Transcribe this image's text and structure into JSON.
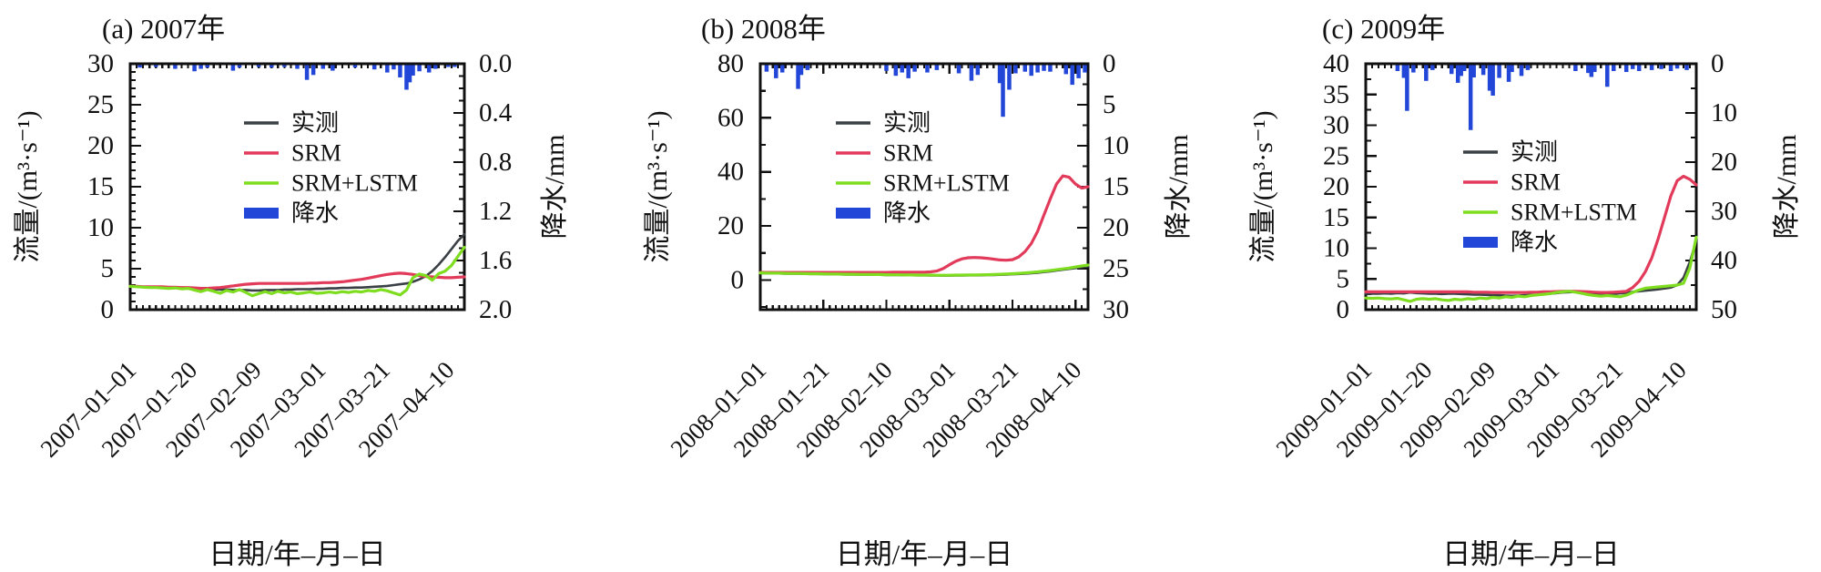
{
  "figure": {
    "background": "#ffffff",
    "xlabel": "日期/年–月–日",
    "ylabel_left": "流量/(m³·s⁻¹)",
    "ylabel_right": "降水/mm",
    "colors": {
      "observed": "#3a4045",
      "srm": "#e23a5a",
      "srm_lstm": "#7fdd20",
      "precip": "#2247d8",
      "axis": "#111111"
    },
    "legend": [
      {
        "key": "observed",
        "label": "实测",
        "type": "line"
      },
      {
        "key": "srm",
        "label": "SRM",
        "type": "line"
      },
      {
        "key": "srm_lstm",
        "label": "SRM+LSTM",
        "type": "line"
      },
      {
        "key": "precip",
        "label": "降水",
        "type": "bar"
      }
    ]
  },
  "chart_data": [
    {
      "id": "a",
      "type": "line+bar",
      "title": "(a) 2007年",
      "x_unit": "days from first tick",
      "x_range": [
        0,
        104
      ],
      "x_step_days": 2,
      "x_ticks": [
        {
          "day": 0,
          "label": "2007–01–01"
        },
        {
          "day": 19,
          "label": "2007–01–20"
        },
        {
          "day": 39,
          "label": "2007–02–09"
        },
        {
          "day": 59,
          "label": "2007–03–01"
        },
        {
          "day": 79,
          "label": "2007–03–21"
        },
        {
          "day": 99,
          "label": "2007–04–10"
        }
      ],
      "flow_axis": {
        "min": 0,
        "max": 30,
        "major": 5,
        "minor": 1
      },
      "precip_axis": {
        "min": 0,
        "max": 2.0,
        "major": 0.4,
        "minor": 0.1,
        "inverted_from_top": true,
        "labels": [
          "0.0",
          "0.4",
          "0.8",
          "1.2",
          "1.6",
          "2.0"
        ]
      },
      "series": {
        "observed": [
          2.9,
          2.85,
          2.8,
          2.8,
          2.75,
          2.75,
          2.7,
          2.7,
          2.65,
          2.6,
          2.6,
          2.55,
          2.5,
          2.5,
          2.45,
          2.45,
          2.4,
          2.4,
          2.4,
          2.35,
          2.35,
          2.4,
          2.4,
          2.4,
          2.45,
          2.45,
          2.5,
          2.5,
          2.5,
          2.55,
          2.55,
          2.6,
          2.6,
          2.65,
          2.65,
          2.7,
          2.7,
          2.75,
          2.8,
          2.85,
          2.9,
          3.0,
          3.1,
          3.2,
          3.4,
          3.7,
          4.1,
          4.7,
          5.5,
          6.4,
          7.4,
          8.4,
          9.2
        ],
        "srm": [
          2.85,
          2.85,
          2.8,
          2.8,
          2.8,
          2.8,
          2.75,
          2.75,
          2.7,
          2.7,
          2.65,
          2.6,
          2.6,
          2.65,
          2.7,
          2.8,
          2.9,
          3.0,
          3.1,
          3.15,
          3.2,
          3.2,
          3.2,
          3.2,
          3.2,
          3.2,
          3.2,
          3.2,
          3.25,
          3.25,
          3.3,
          3.3,
          3.35,
          3.4,
          3.5,
          3.6,
          3.7,
          3.85,
          4.0,
          4.15,
          4.3,
          4.4,
          4.45,
          4.4,
          4.3,
          4.15,
          4.05,
          4.0,
          3.95,
          3.9,
          3.9,
          3.95,
          4.0
        ],
        "srm_lstm": [
          2.85,
          2.8,
          2.75,
          2.7,
          2.7,
          2.65,
          2.6,
          2.65,
          2.55,
          2.6,
          2.4,
          2.2,
          2.45,
          2.25,
          2.0,
          2.35,
          2.15,
          2.45,
          2.1,
          1.7,
          1.95,
          2.2,
          1.95,
          2.25,
          2.05,
          2.15,
          1.95,
          2.05,
          2.15,
          2.0,
          2.05,
          2.15,
          2.05,
          2.2,
          2.1,
          2.25,
          2.15,
          2.35,
          2.25,
          2.45,
          2.3,
          2.05,
          1.8,
          2.4,
          3.9,
          4.35,
          4.15,
          3.6,
          4.4,
          4.7,
          5.4,
          6.5,
          7.6
        ]
      },
      "precip_events": [
        [
          3,
          0.02
        ],
        [
          8,
          0.015
        ],
        [
          14,
          0.03
        ],
        [
          20,
          0.05
        ],
        [
          22,
          0.03
        ],
        [
          24,
          0.02
        ],
        [
          32,
          0.045
        ],
        [
          34,
          0.02
        ],
        [
          40,
          0.015
        ],
        [
          44,
          0.02
        ],
        [
          48,
          0.015
        ],
        [
          52,
          0.03
        ],
        [
          55,
          0.12
        ],
        [
          57,
          0.08
        ],
        [
          60,
          0.03
        ],
        [
          63,
          0.045
        ],
        [
          70,
          0.02
        ],
        [
          76,
          0.035
        ],
        [
          80,
          0.06
        ],
        [
          82,
          0.035
        ],
        [
          84,
          0.1
        ],
        [
          86,
          0.2
        ],
        [
          87,
          0.14
        ],
        [
          88,
          0.085
        ],
        [
          90,
          0.05
        ],
        [
          93,
          0.06
        ],
        [
          95,
          0.03
        ],
        [
          99,
          0.015
        ],
        [
          101,
          0.01
        ]
      ]
    },
    {
      "id": "b",
      "type": "line+bar",
      "title": "(b) 2008年",
      "x_unit": "days from first tick",
      "x_range": [
        0,
        104
      ],
      "x_step_days": 2,
      "x_ticks": [
        {
          "day": 0,
          "label": "2008–01–01"
        },
        {
          "day": 20,
          "label": "2008–01–21"
        },
        {
          "day": 40,
          "label": "2008–02–10"
        },
        {
          "day": 60,
          "label": "2008–03–01"
        },
        {
          "day": 80,
          "label": "2008–03–21"
        },
        {
          "day": 100,
          "label": "2008–04–10"
        }
      ],
      "flow_axis": {
        "min": -11,
        "max": 80,
        "major": 20,
        "minor": 10
      },
      "precip_axis": {
        "min": 0,
        "max": 30,
        "major": 5,
        "minor": 2.5,
        "inverted_from_top": true,
        "labels": [
          "0",
          "5",
          "10",
          "15",
          "20",
          "25",
          "30"
        ]
      },
      "series": {
        "observed": [
          2.5,
          2.45,
          2.4,
          2.4,
          2.35,
          2.3,
          2.3,
          2.25,
          2.2,
          2.2,
          2.15,
          2.1,
          2.1,
          2.05,
          2.0,
          2.0,
          1.95,
          1.95,
          1.9,
          1.9,
          1.85,
          1.8,
          1.8,
          1.75,
          1.75,
          1.7,
          1.7,
          1.65,
          1.65,
          1.6,
          1.6,
          1.65,
          1.65,
          1.7,
          1.7,
          1.75,
          1.8,
          1.85,
          1.9,
          2.0,
          2.1,
          2.2,
          2.35,
          2.5,
          2.7,
          2.95,
          3.2,
          3.5,
          3.8,
          4.1,
          4.4,
          4.75,
          5.1
        ],
        "srm": [
          2.8,
          2.8,
          2.8,
          2.8,
          2.8,
          2.8,
          2.8,
          2.8,
          2.8,
          2.8,
          2.8,
          2.8,
          2.8,
          2.8,
          2.8,
          2.8,
          2.8,
          2.8,
          2.8,
          2.8,
          2.8,
          2.85,
          2.85,
          2.85,
          2.9,
          2.9,
          2.9,
          3.0,
          3.3,
          4.2,
          5.6,
          6.9,
          7.8,
          8.2,
          8.3,
          8.2,
          8.0,
          7.7,
          7.4,
          7.3,
          7.5,
          8.5,
          10.5,
          13.5,
          18.0,
          24.0,
          30.0,
          35.5,
          38.5,
          38.0,
          35.5,
          34.0,
          34.5
        ],
        "srm_lstm": [
          2.6,
          2.55,
          2.5,
          2.5,
          2.45,
          2.4,
          2.4,
          2.35,
          2.3,
          2.3,
          2.25,
          2.2,
          2.2,
          2.15,
          2.1,
          2.1,
          2.05,
          2.05,
          2.0,
          2.0,
          1.95,
          1.9,
          1.9,
          1.85,
          1.85,
          1.8,
          1.8,
          1.8,
          1.75,
          1.75,
          1.75,
          1.8,
          1.8,
          1.85,
          1.85,
          1.9,
          1.95,
          2.0,
          2.1,
          2.2,
          2.3,
          2.45,
          2.6,
          2.8,
          3.0,
          3.25,
          3.5,
          3.8,
          4.1,
          4.4,
          4.8,
          5.2,
          5.5
        ]
      },
      "precip_events": [
        [
          2,
          0.8
        ],
        [
          5,
          1.6
        ],
        [
          7,
          0.9
        ],
        [
          12,
          2.9
        ],
        [
          13,
          1.2
        ],
        [
          15,
          0.6
        ],
        [
          40,
          0.7
        ],
        [
          43,
          1.3
        ],
        [
          45,
          0.9
        ],
        [
          47,
          1.6
        ],
        [
          49,
          0.8
        ],
        [
          53,
          0.9
        ],
        [
          56,
          0.6
        ],
        [
          63,
          1.0
        ],
        [
          67,
          1.9
        ],
        [
          69,
          1.2
        ],
        [
          76,
          2.2
        ],
        [
          77,
          6.3
        ],
        [
          79,
          3.0
        ],
        [
          81,
          1.0
        ],
        [
          84,
          0.8
        ],
        [
          86,
          1.3
        ],
        [
          88,
          0.9
        ],
        [
          90,
          0.7
        ],
        [
          92,
          0.8
        ],
        [
          97,
          1.1
        ],
        [
          99,
          2.4
        ],
        [
          101,
          1.6
        ],
        [
          103,
          0.9
        ]
      ]
    },
    {
      "id": "c",
      "type": "line+bar",
      "title": "(c) 2009年",
      "x_unit": "days from first tick",
      "x_range": [
        0,
        104
      ],
      "x_step_days": 2,
      "x_ticks": [
        {
          "day": 0,
          "label": "2009–01–01"
        },
        {
          "day": 19,
          "label": "2009–01–20"
        },
        {
          "day": 39,
          "label": "2009–02–09"
        },
        {
          "day": 59,
          "label": "2009–03–01"
        },
        {
          "day": 79,
          "label": "2009–03–21"
        },
        {
          "day": 99,
          "label": "2009–04–10"
        }
      ],
      "flow_axis": {
        "min": 0,
        "max": 40,
        "major": 5,
        "minor": 2.5
      },
      "precip_axis": {
        "min": 0,
        "max": 50,
        "major": 10,
        "minor": 5,
        "inverted_from_top": true,
        "labels": [
          "0",
          "10",
          "20",
          "30",
          "40",
          "50"
        ]
      },
      "series": {
        "observed": [
          2.6,
          2.6,
          2.6,
          2.65,
          2.6,
          2.7,
          2.65,
          2.8,
          2.7,
          2.65,
          2.6,
          2.6,
          2.55,
          2.6,
          2.6,
          2.55,
          2.5,
          2.45,
          2.45,
          2.4,
          2.35,
          2.35,
          2.3,
          2.25,
          2.3,
          2.35,
          2.4,
          2.4,
          2.5,
          2.6,
          2.7,
          2.8,
          2.85,
          2.9,
          2.85,
          2.75,
          2.65,
          2.55,
          2.5,
          2.55,
          2.65,
          2.75,
          2.9,
          3.0,
          3.1,
          3.2,
          3.3,
          3.45,
          3.6,
          4.0,
          5.2,
          7.8,
          11.2
        ],
        "srm": [
          2.9,
          2.9,
          2.9,
          2.9,
          2.9,
          2.9,
          2.9,
          2.9,
          2.9,
          2.9,
          2.9,
          2.9,
          2.9,
          2.9,
          2.9,
          2.9,
          2.9,
          2.85,
          2.85,
          2.85,
          2.8,
          2.8,
          2.8,
          2.8,
          2.8,
          2.8,
          2.85,
          2.85,
          2.9,
          2.9,
          2.95,
          3.0,
          3.0,
          3.0,
          2.95,
          2.9,
          2.85,
          2.8,
          2.8,
          2.85,
          2.9,
          3.0,
          3.6,
          4.6,
          6.2,
          8.4,
          11.5,
          15.0,
          18.5,
          21.0,
          21.7,
          21.2,
          20.3
        ],
        "srm_lstm": [
          1.9,
          1.85,
          1.9,
          1.8,
          1.75,
          1.85,
          1.6,
          1.35,
          1.7,
          1.8,
          1.7,
          1.8,
          1.6,
          1.5,
          1.7,
          1.6,
          1.8,
          1.7,
          1.9,
          1.8,
          2.0,
          1.9,
          2.1,
          2.0,
          2.2,
          2.1,
          2.3,
          2.4,
          2.5,
          2.6,
          2.8,
          2.9,
          3.0,
          2.85,
          2.65,
          2.45,
          2.3,
          2.2,
          2.3,
          2.2,
          2.1,
          2.35,
          2.8,
          3.2,
          3.5,
          3.6,
          3.7,
          3.8,
          3.9,
          4.0,
          4.3,
          6.8,
          11.8
        ]
      },
      "precip_events": [
        [
          10,
          1.2
        ],
        [
          12,
          2.6
        ],
        [
          13,
          9.3
        ],
        [
          15,
          1.5
        ],
        [
          19,
          3.2
        ],
        [
          21,
          1.0
        ],
        [
          27,
          1.8
        ],
        [
          29,
          3.6
        ],
        [
          30,
          2.2
        ],
        [
          31,
          1.2
        ],
        [
          33,
          13.2
        ],
        [
          34,
          2.5
        ],
        [
          37,
          2.0
        ],
        [
          39,
          5.2
        ],
        [
          40,
          6.2
        ],
        [
          42,
          2.6
        ],
        [
          45,
          3.4
        ],
        [
          46,
          1.4
        ],
        [
          49,
          2.2
        ],
        [
          51,
          1.0
        ],
        [
          66,
          1.2
        ],
        [
          70,
          1.6
        ],
        [
          71,
          2.4
        ],
        [
          72,
          1.4
        ],
        [
          76,
          4.4
        ],
        [
          78,
          1.2
        ],
        [
          82,
          1.4
        ],
        [
          84,
          0.8
        ],
        [
          86,
          1.2
        ],
        [
          90,
          1.0
        ],
        [
          93,
          0.8
        ],
        [
          96,
          1.2
        ],
        [
          98,
          0.7
        ],
        [
          101,
          1.0
        ]
      ]
    }
  ]
}
